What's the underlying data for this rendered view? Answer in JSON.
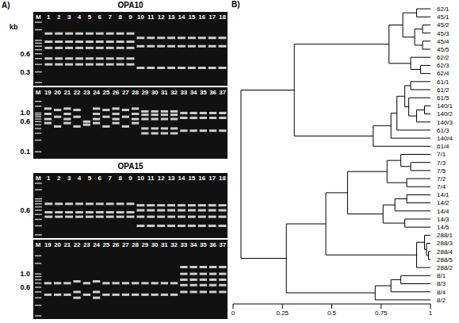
{
  "panel_a": {
    "label": "A)",
    "gels": [
      {
        "title": "OPA10",
        "unit": "kb",
        "ladder_bands": [
          0.1,
          0.2,
          0.3,
          0.4,
          0.5,
          0.6,
          0.7,
          0.8,
          0.9,
          1.0,
          1.5,
          2.0
        ],
        "rows": [
          {
            "ladder": "M",
            "lanes": [
              "1",
              "2",
              "3",
              "4",
              "5",
              "6",
              "7",
              "8",
              "9",
              "10",
              "11",
              "12",
              "13",
              "14",
              "15",
              "16",
              "17",
              "18"
            ],
            "marks": [
              0.6,
              0.3
            ],
            "kb_range": [
              0.2,
              2.0
            ],
            "patterns": [
              [
                1.3,
                0.95,
                0.75,
                0.5,
                0.4
              ],
              [
                1.1,
                0.8,
                0.35
              ]
            ],
            "lane_patterns": [
              0,
              0,
              0,
              0,
              0,
              0,
              0,
              0,
              0,
              1,
              1,
              1,
              1,
              1,
              1,
              1,
              1,
              1
            ]
          },
          {
            "ladder": "M",
            "lanes": [
              "19",
              "20",
              "21",
              "22",
              "23",
              "24",
              "25",
              "26",
              "27",
              "28",
              "29",
              "30",
              "31",
              "32",
              "33",
              "34",
              "35",
              "36",
              "37"
            ],
            "marks": [
              {
                "value": 1.0,
                "label": "1.0"
              },
              0.6,
              0.1
            ],
            "kb_range": [
              0.08,
              2.5
            ],
            "patterns": [
              [
                1.3,
                0.95,
                0.7,
                0.55
              ],
              [
                1.2,
                0.8,
                0.45
              ],
              [
                0.6,
                0.5
              ],
              [
                1.1,
                0.9,
                0.7,
                0.4,
                0.3
              ],
              [
                1.0,
                0.75,
                0.35
              ]
            ],
            "lane_patterns": [
              0,
              1,
              0,
              1,
              2,
              0,
              1,
              0,
              1,
              0,
              3,
              3,
              3,
              3,
              4,
              4,
              4,
              4,
              4
            ]
          }
        ]
      },
      {
        "title": "OPA15",
        "ladder_bands": [
          0.2,
          0.3,
          0.4,
          0.5,
          0.6,
          0.7,
          0.8,
          0.9,
          1.0,
          1.5,
          2.0
        ],
        "rows": [
          {
            "ladder": "M",
            "lanes": [
              "1",
              "2",
              "3",
              "4",
              "5",
              "6",
              "7",
              "8",
              "9",
              "10",
              "11",
              "12",
              "13",
              "14",
              "15",
              "16",
              "17",
              "18"
            ],
            "marks": [
              0.6
            ],
            "kb_range": [
              0.2,
              2.0
            ],
            "patterns": [
              [
                0.8,
                0.55,
                0.45
              ],
              [
                0.75,
                0.6,
                0.45,
                0.3
              ]
            ],
            "lane_patterns": [
              0,
              0,
              0,
              0,
              0,
              0,
              0,
              0,
              0,
              1,
              1,
              1,
              1,
              1,
              1,
              1,
              1,
              1
            ]
          },
          {
            "ladder": "M",
            "lanes": [
              "19",
              "20",
              "21",
              "22",
              "23",
              "24",
              "25",
              "26",
              "27",
              "28",
              "29",
              "30",
              "31",
              "32",
              "33",
              "34",
              "35",
              "36",
              "37"
            ],
            "marks": [
              {
                "value": 1.0,
                "label": "1.0"
              },
              0.6
            ],
            "kb_range": [
              0.2,
              2.5
            ],
            "patterns": [
              [
                0.7,
                0.45
              ],
              [
                0.75,
                0.5,
                0.4
              ],
              [
                1.3,
                1.0,
                0.8,
                0.65,
                0.5
              ]
            ],
            "lane_patterns": [
              0,
              0,
              0,
              1,
              0,
              1,
              0,
              0,
              0,
              0,
              0,
              0,
              0,
              0,
              2,
              2,
              2,
              2,
              2
            ]
          }
        ]
      }
    ]
  },
  "chart_data": {
    "type": "dendrogram",
    "label": "B)",
    "xlim": [
      0,
      1
    ],
    "xticks": [
      0,
      0.25,
      0.5,
      0.75,
      1
    ],
    "tree": {
      "height": 0.04,
      "children": [
        {
          "height": 0.31,
          "children": [
            {
              "height": 0.79,
              "children": [
                {
                  "height": 0.86,
                  "children": [
                    {
                      "height": 0.93,
                      "children": [
                        "62/1",
                        "45/1"
                      ]
                    },
                    {
                      "height": 0.92,
                      "children": [
                        {
                          "height": 0.96,
                          "children": [
                            "45/2",
                            "45/3"
                          ]
                        },
                        {
                          "height": 0.96,
                          "children": [
                            "45/4",
                            "45/5"
                          ]
                        }
                      ]
                    }
                  ]
                },
                {
                  "height": 0.9,
                  "children": [
                    "62/2",
                    {
                      "height": 0.95,
                      "children": [
                        "62/3",
                        "62/4"
                      ]
                    }
                  ]
                }
              ]
            },
            {
              "height": 0.71,
              "children": [
                {
                  "height": 0.8,
                  "children": [
                    {
                      "height": 0.83,
                      "children": [
                        {
                          "height": 0.87,
                          "children": [
                            {
                              "height": 0.9,
                              "children": [
                                "61/1",
                                "61/2"
                              ]
                            },
                            {
                              "height": 0.89,
                              "children": [
                                "61/5",
                                {
                                  "height": 0.93,
                                  "children": [
                                    {
                                      "height": 0.97,
                                      "children": [
                                        "140/1",
                                        "140/2"
                                      ]
                                    },
                                    "140/3"
                                  ]
                                }
                              ]
                            }
                          ]
                        },
                        "61/3"
                      ]
                    },
                    "140/4"
                  ]
                },
                "61/4"
              ]
            }
          ]
        },
        {
          "height": 0.27,
          "children": [
            {
              "height": 0.47,
              "children": [
                {
                  "height": 0.58,
                  "children": [
                    {
                      "height": 0.78,
                      "children": [
                        {
                          "height": 0.85,
                          "children": [
                            "7/1",
                            {
                              "height": 0.9,
                              "children": [
                                "7/3",
                                "7/5"
                              ]
                            }
                          ]
                        },
                        {
                          "height": 0.88,
                          "children": [
                            "7/2",
                            "7/4"
                          ]
                        }
                      ]
                    },
                    {
                      "height": 0.76,
                      "children": [
                        {
                          "height": 0.82,
                          "children": [
                            {
                              "height": 0.88,
                              "children": [
                                "14/1",
                                "14/2"
                              ]
                            },
                            "14/4"
                          ]
                        },
                        {
                          "height": 0.87,
                          "children": [
                            "14/3",
                            "14/5"
                          ]
                        }
                      ]
                    }
                  ]
                },
                {
                  "height": 0.93,
                  "children": [
                    {
                      "height": 0.97,
                      "children": [
                        "288/1",
                        {
                          "height": 0.98,
                          "children": [
                            "288/3",
                            {
                              "height": 0.99,
                              "children": [
                                "288/4",
                                "288/5"
                              ]
                            }
                          ]
                        }
                      ]
                    },
                    "288/2"
                  ]
                }
              ]
            },
            {
              "height": 0.72,
              "children": [
                {
                  "height": 0.8,
                  "children": [
                    {
                      "height": 0.85,
                      "children": [
                        "8/1",
                        "8/3"
                      ]
                    },
                    "8/4"
                  ]
                },
                "8/2"
              ]
            }
          ]
        }
      ]
    }
  }
}
